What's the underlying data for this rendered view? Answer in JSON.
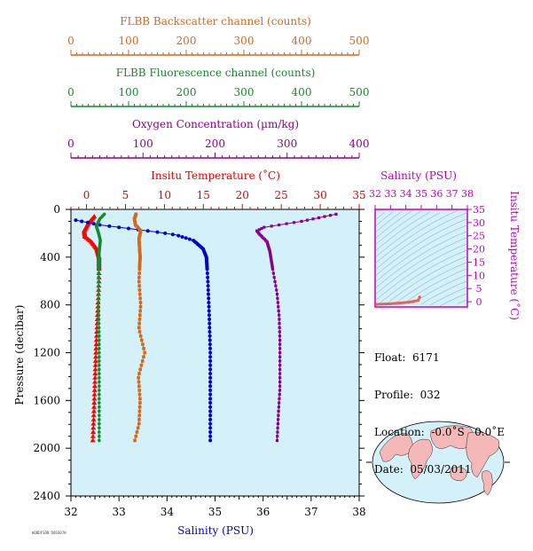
{
  "chart_data": {
    "type": "line",
    "pressure_axis": {
      "label": "Pressure (decibar)",
      "ticks": [
        0,
        400,
        800,
        1200,
        1600,
        2000,
        2400
      ],
      "range": [
        0,
        2400
      ],
      "reversed": true
    },
    "axes": {
      "backscatter": {
        "label": "FLBB Backscatter channel (counts)",
        "range": [
          0,
          500
        ],
        "ticks": [
          0,
          100,
          200,
          300,
          400,
          500
        ],
        "color": "#d2691e"
      },
      "fluorescence": {
        "label": "FLBB Fluorescence channel (counts)",
        "range": [
          0,
          500
        ],
        "ticks": [
          0,
          100,
          200,
          300,
          400,
          500
        ],
        "color": "#138a2e"
      },
      "oxygen": {
        "label": "Oxygen Concentration (µm/kg)",
        "range": [
          0,
          400
        ],
        "ticks": [
          0,
          100,
          200,
          300,
          400
        ],
        "color": "#8b008b"
      },
      "temperature": {
        "label": "Insitu Temperature (˚C)",
        "range": [
          -2,
          35
        ],
        "ticks": [
          0,
          5,
          10,
          15,
          20,
          25,
          30,
          35
        ],
        "color": "#e00000"
      },
      "salinity": {
        "label": "Salinity (PSU)",
        "range": [
          32,
          38
        ],
        "ticks": [
          32,
          33,
          34,
          35,
          36,
          37,
          38
        ],
        "color": "#0000cc"
      }
    },
    "series": [
      {
        "axis": "temperature",
        "color": "#ff0000",
        "points": [
          [
            1.0,
            60
          ],
          [
            0.2,
            120
          ],
          [
            -0.3,
            180
          ],
          [
            -0.2,
            230
          ],
          [
            0.6,
            270
          ],
          [
            1.3,
            330
          ],
          [
            1.6,
            400
          ],
          [
            1.6,
            600
          ],
          [
            1.4,
            900
          ],
          [
            1.2,
            1200
          ],
          [
            1.0,
            1600
          ],
          [
            0.8,
            1950
          ]
        ]
      },
      {
        "axis": "salinity",
        "color": "#0000cc",
        "points": [
          [
            32.1,
            90
          ],
          [
            32.6,
            130
          ],
          [
            33.2,
            160
          ],
          [
            33.8,
            190
          ],
          [
            34.2,
            215
          ],
          [
            34.55,
            260
          ],
          [
            34.75,
            330
          ],
          [
            34.82,
            400
          ],
          [
            34.85,
            600
          ],
          [
            34.88,
            900
          ],
          [
            34.9,
            1200
          ],
          [
            34.9,
            1600
          ],
          [
            34.9,
            1950
          ]
        ]
      },
      {
        "axis": "fluorescence",
        "color": "#138a2e",
        "points": [
          [
            58,
            40
          ],
          [
            50,
            80
          ],
          [
            44,
            140
          ],
          [
            48,
            200
          ],
          [
            51,
            260
          ],
          [
            49,
            350
          ],
          [
            48,
            500
          ],
          [
            48,
            800
          ],
          [
            49,
            1100
          ],
          [
            49,
            1400
          ],
          [
            49,
            1700
          ],
          [
            49,
            1950
          ]
        ]
      },
      {
        "axis": "backscatter",
        "color": "#d2691e",
        "points": [
          [
            113,
            40
          ],
          [
            110,
            80
          ],
          [
            112,
            130
          ],
          [
            121,
            180
          ],
          [
            118,
            250
          ],
          [
            120,
            400
          ],
          [
            118,
            600
          ],
          [
            121,
            800
          ],
          [
            118,
            1000
          ],
          [
            128,
            1200
          ],
          [
            117,
            1400
          ],
          [
            120,
            1600
          ],
          [
            118,
            1800
          ],
          [
            110,
            1950
          ]
        ]
      },
      {
        "axis": "oxygen",
        "color": "#8b008b",
        "points": [
          [
            368,
            40
          ],
          [
            320,
            100
          ],
          [
            268,
            150
          ],
          [
            258,
            180
          ],
          [
            262,
            210
          ],
          [
            272,
            270
          ],
          [
            276,
            350
          ],
          [
            280,
            500
          ],
          [
            286,
            700
          ],
          [
            289,
            900
          ],
          [
            290,
            1100
          ],
          [
            290,
            1300
          ],
          [
            290,
            1500
          ],
          [
            288,
            1700
          ],
          [
            286,
            1950
          ]
        ]
      }
    ],
    "inset_ts": {
      "x_label": "Salinity (PSU)",
      "x_ticks": [
        32,
        33,
        34,
        35,
        36,
        37,
        38
      ],
      "y_label": "Insitu Temperature (˚C)",
      "y_ticks": [
        0,
        5,
        10,
        15,
        20,
        25,
        30,
        35
      ],
      "points": [
        [
          32.1,
          -1.0
        ],
        [
          33.0,
          -0.8
        ],
        [
          34.2,
          -0.2
        ],
        [
          34.8,
          0.5
        ],
        [
          34.9,
          1.8
        ]
      ]
    }
  },
  "info": {
    "float": "Float:  6171",
    "profile": "Profile:  032",
    "location": "Location:  -0.0˚S   0.0˚E",
    "date": "Date:  05/03/2011"
  },
  "footer_tiny": "HOBDFSDD D0SS07H"
}
